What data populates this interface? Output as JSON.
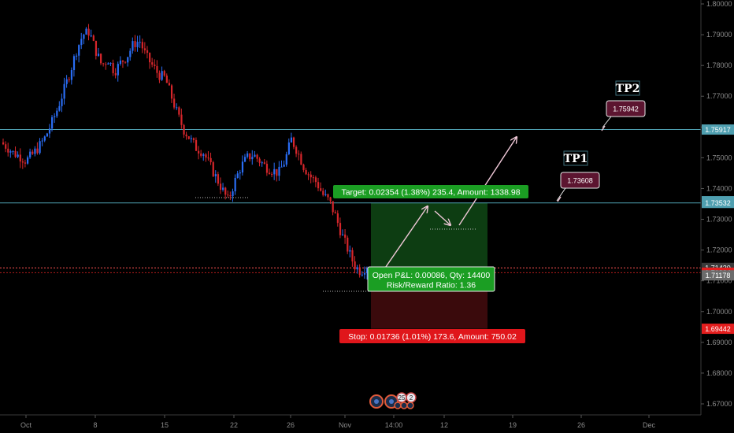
{
  "chart_data": {
    "type": "candlestick",
    "instrument_price_axis": {
      "ticks": [
        "1.80000",
        "1.79000",
        "1.78000",
        "1.77000",
        "1.76000",
        "1.75000",
        "1.74000",
        "1.73000",
        "1.72000",
        "1.71000",
        "1.70000",
        "1.69000",
        "1.68000",
        "1.67000"
      ],
      "tick_values": [
        1.8,
        1.79,
        1.78,
        1.77,
        1.76,
        1.75,
        1.74,
        1.73,
        1.72,
        1.71,
        1.7,
        1.69,
        1.68,
        1.67
      ],
      "ylim": [
        1.6655,
        1.8005
      ]
    },
    "time_axis": {
      "labels": [
        "Oct",
        "8",
        "15",
        "22",
        "26",
        "Nov",
        "14:00",
        "12",
        "19",
        "26",
        "Dec"
      ]
    },
    "candles_trend": [
      1.755,
      1.7535,
      1.7515,
      1.7505,
      1.749,
      1.751,
      1.7535,
      1.7565,
      1.761,
      1.766,
      1.772,
      1.778,
      1.785,
      1.79,
      1.791,
      1.785,
      1.78,
      1.782,
      1.778,
      1.781,
      1.783,
      1.787,
      1.788,
      1.783,
      1.78,
      1.777,
      1.776,
      1.77,
      1.764,
      1.759,
      1.756,
      1.753,
      1.752,
      1.748,
      1.744,
      1.74,
      1.736,
      1.742,
      1.747,
      1.75,
      1.751,
      1.749,
      1.747,
      1.746,
      1.745,
      1.749,
      1.756,
      1.752,
      1.747,
      1.744,
      1.742,
      1.738,
      1.736,
      1.731,
      1.725,
      1.72,
      1.715,
      1.713,
      1.715
    ],
    "horizontal_levels": [
      {
        "price": 1.75917,
        "label": "1.75917",
        "color": "#4f9fb0"
      },
      {
        "price": 1.73588,
        "label": "1.73588",
        "color": "#4f9fb0"
      },
      {
        "price": 1.73532,
        "label": "1.73532",
        "color": "#4f9fb0"
      },
      {
        "price": 1.7142,
        "label": "1.71420",
        "color": "#ff5252"
      },
      {
        "price": 1.71264,
        "label": "1.71264",
        "color": "#e41e1e"
      },
      {
        "price": 1.71178,
        "label": "1.71178",
        "color": "#6b6b6b"
      },
      {
        "price": 1.69442,
        "label": "1.69442",
        "color": "#e41e1e"
      }
    ],
    "position": {
      "entry": 1.71178,
      "target_price": 1.73532,
      "stop_price": 1.69442,
      "target_label": "Target: 0.02354 (1.38%) 235.4, Amount: 1338.98",
      "open_pl_label": "Open P&L: 0.00086, Qty: 14400",
      "risk_reward_label": "Risk/Reward Ratio: 1.36",
      "stop_label": "Stop: 0.01736 (1.01%) 173.6, Amount: 750.02"
    },
    "annotations": [
      {
        "text": "TP1",
        "badge": "1.73608"
      },
      {
        "text": "TP2",
        "badge": "1.75942"
      }
    ],
    "event_markers": [
      "25",
      "2"
    ],
    "colors": {
      "up": "#2a6df4",
      "down": "#d6262b",
      "target_zone": "#0d3d12",
      "stop_zone": "#3a0a0c",
      "green_box": "#1b9e23",
      "red_box": "#e0161b",
      "badge": "#5c1530"
    },
    "grid": false
  }
}
